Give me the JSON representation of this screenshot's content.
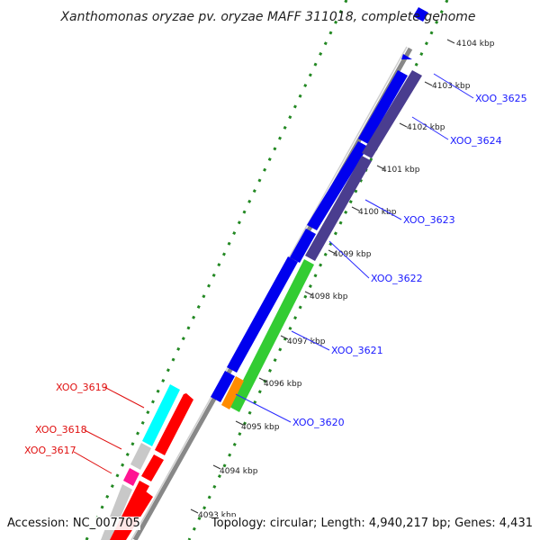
{
  "title": "Xanthomonas oryzae pv. oryzae MAFF 311018, complete genome",
  "accession_text": "Accession: NC_007705",
  "topology_text": "Topology: circular; Length: 4,940,217 bp; Genes: 4,431",
  "ticks": [
    "4104 kbp",
    "4103 kbp",
    "4102 kbp",
    "4101 kbp",
    "4100 kbp",
    "4099 kbp",
    "4098 kbp",
    "4097 kbp",
    "4096 kbp",
    "4095 kbp",
    "4094 kbp",
    "4093 kbp"
  ],
  "genes_forward": [
    "XOO_3625",
    "XOO_3624",
    "XOO_3623",
    "XOO_3622",
    "XOO_3621",
    "XOO_3620"
  ],
  "genes_reverse": [
    "XOO_3619",
    "XOO_3618",
    "XOO_3617"
  ],
  "colors": {
    "blue": "#0000ee",
    "purple": "#4a3d8f",
    "green": "#33cc33",
    "orange": "#ff8c00",
    "red": "#ff0000",
    "cyan": "#00ffff",
    "magenta": "#ff1493",
    "gray": "#c8c8c8",
    "backbone": "#999999",
    "dots": "#228822"
  }
}
